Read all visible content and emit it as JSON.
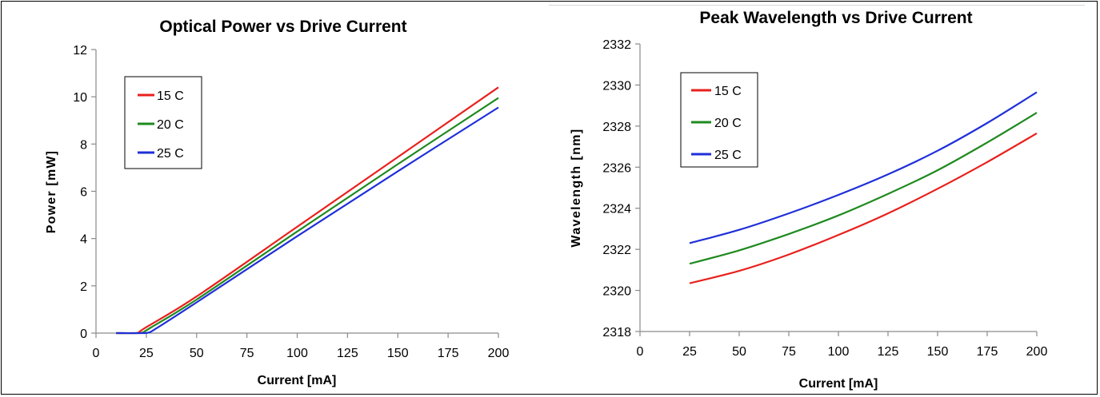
{
  "chart_data": [
    {
      "type": "line",
      "title": "Optical Power vs Drive Current",
      "xlabel": "Current [mA]",
      "ylabel": "Power [mW]",
      "xlim": [
        0,
        200
      ],
      "ylim": [
        0,
        12
      ],
      "xticks": [
        0,
        25,
        50,
        75,
        100,
        125,
        150,
        175,
        200
      ],
      "yticks": [
        0,
        2,
        4,
        6,
        8,
        10,
        12
      ],
      "grid": false,
      "legend_position": "top-left",
      "series": [
        {
          "name": "15 C",
          "color": "#e8201c",
          "x": [
            10,
            18,
            21,
            25,
            50,
            100,
            150,
            200
          ],
          "y": [
            0,
            0,
            0.02,
            0.25,
            1.55,
            4.5,
            7.45,
            10.4
          ]
        },
        {
          "name": "20 C",
          "color": "#1f8a1f",
          "x": [
            10,
            20,
            23,
            27,
            50,
            100,
            150,
            200
          ],
          "y": [
            0,
            0,
            0.02,
            0.22,
            1.42,
            4.3,
            7.15,
            9.95
          ]
        },
        {
          "name": "25 C",
          "color": "#1f2fd8",
          "x": [
            10,
            22,
            26,
            30,
            50,
            100,
            150,
            200
          ],
          "y": [
            0,
            0,
            0.02,
            0.2,
            1.3,
            4.1,
            6.85,
            9.55
          ]
        }
      ]
    },
    {
      "type": "line",
      "title": "Peak Wavelength vs Drive Current",
      "xlabel": "Current [mA]",
      "ylabel": "Wavelength [nm]",
      "xlim": [
        0,
        200
      ],
      "ylim": [
        2318,
        2332
      ],
      "xticks": [
        0,
        25,
        50,
        75,
        100,
        125,
        150,
        175,
        200
      ],
      "yticks": [
        2318,
        2320,
        2322,
        2324,
        2326,
        2328,
        2330,
        2332
      ],
      "grid": false,
      "legend_position": "top-left",
      "series": [
        {
          "name": "15 C",
          "color": "#e8201c",
          "x": [
            25,
            50,
            75,
            100,
            125,
            150,
            175,
            200
          ],
          "y": [
            2320.35,
            2320.95,
            2321.75,
            2322.7,
            2323.75,
            2324.95,
            2326.25,
            2327.65
          ]
        },
        {
          "name": "20 C",
          "color": "#1f8a1f",
          "x": [
            25,
            50,
            75,
            100,
            125,
            150,
            175,
            200
          ],
          "y": [
            2321.3,
            2321.95,
            2322.75,
            2323.65,
            2324.7,
            2325.85,
            2327.2,
            2328.65
          ]
        },
        {
          "name": "25 C",
          "color": "#1f2fd8",
          "x": [
            25,
            50,
            75,
            100,
            125,
            150,
            175,
            200
          ],
          "y": [
            2322.3,
            2322.95,
            2323.75,
            2324.65,
            2325.65,
            2326.8,
            2328.15,
            2329.65
          ]
        }
      ]
    }
  ]
}
